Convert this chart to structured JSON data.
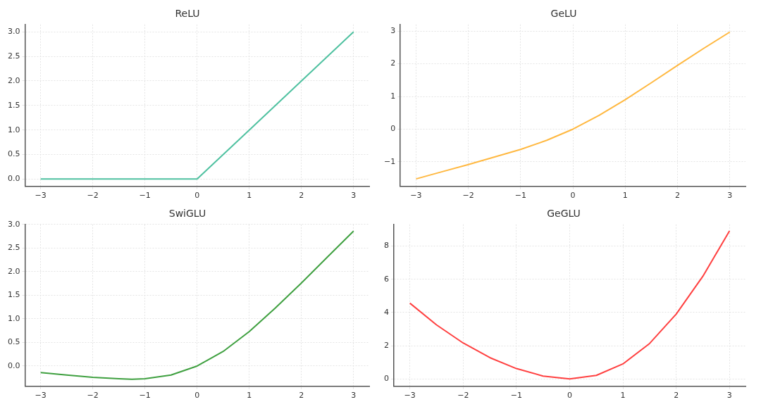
{
  "chart_data": [
    {
      "type": "line",
      "title": "ReLU",
      "x": [
        -3,
        -2,
        -1,
        0,
        1,
        2,
        3
      ],
      "series": [
        {
          "color": "#4fc1a0",
          "values": [
            0,
            0,
            0,
            0,
            1,
            2,
            3
          ]
        }
      ],
      "xlim": [
        -3.3,
        3.3
      ],
      "ylim": [
        -0.15,
        3.15
      ],
      "xticks": [
        -3,
        -2,
        -1,
        0,
        1,
        2,
        3
      ],
      "yticks": [
        {
          "value": 0,
          "label": "0.0"
        },
        0.5,
        {
          "value": 1,
          "label": "1.0"
        },
        1.5,
        {
          "value": 2,
          "label": "2.0"
        },
        2.5,
        {
          "value": 3,
          "label": "3.0"
        }
      ],
      "grid": true,
      "legend": false
    },
    {
      "type": "line",
      "title": "GeLU",
      "x": [
        -3,
        -2.5,
        -2,
        -1.5,
        -1,
        -0.5,
        0,
        0.5,
        1,
        1.5,
        2,
        2.5,
        3
      ],
      "series": [
        {
          "color": "#ffb840",
          "values": [
            -1.52,
            -1.3,
            -1.08,
            -0.85,
            -0.62,
            -0.34,
            0,
            0.42,
            0.9,
            1.42,
            1.95,
            2.47,
            2.97
          ]
        }
      ],
      "xlim": [
        -3.3,
        3.3
      ],
      "ylim": [
        -1.75,
        3.2
      ],
      "xticks": [
        -3,
        -2,
        -1,
        0,
        1,
        2,
        3
      ],
      "yticks": [
        -1,
        0,
        1,
        2,
        3
      ],
      "grid": true,
      "legend": false
    },
    {
      "type": "line",
      "title": "SwiGLU",
      "x": [
        -3,
        -2.5,
        -2,
        -1.5,
        -1.25,
        -1,
        -0.5,
        0,
        0.5,
        1,
        1.5,
        2,
        2.5,
        3
      ],
      "series": [
        {
          "color": "#3fa040",
          "values": [
            -0.14,
            -0.19,
            -0.24,
            -0.27,
            -0.28,
            -0.27,
            -0.19,
            0,
            0.31,
            0.73,
            1.23,
            1.76,
            2.31,
            2.86
          ]
        }
      ],
      "xlim": [
        -3.3,
        3.3
      ],
      "ylim": [
        -0.43,
        3.0
      ],
      "xticks": [
        -3,
        -2,
        -1,
        0,
        1,
        2,
        3
      ],
      "yticks": [
        {
          "value": 0,
          "label": "0.0"
        },
        0.5,
        {
          "value": 1,
          "label": "1.0"
        },
        1.5,
        {
          "value": 2,
          "label": "2.0"
        },
        2.5,
        {
          "value": 3,
          "label": "3.0"
        }
      ],
      "grid": true,
      "legend": false
    },
    {
      "type": "line",
      "title": "GeGLU",
      "x": [
        -3,
        -2.5,
        -2,
        -1.5,
        -1,
        -0.5,
        0,
        0.5,
        1,
        1.5,
        2,
        2.5,
        3
      ],
      "series": [
        {
          "color": "#ff4040",
          "values": [
            4.56,
            3.25,
            2.16,
            1.28,
            0.62,
            0.17,
            0,
            0.21,
            0.9,
            2.13,
            3.9,
            6.18,
            8.91
          ]
        }
      ],
      "xlim": [
        -3.3,
        3.3
      ],
      "ylim": [
        -0.45,
        9.3
      ],
      "xticks": [
        -3,
        -2,
        -1,
        0,
        1,
        2,
        3
      ],
      "yticks": [
        0,
        2,
        4,
        6,
        8
      ],
      "grid": true,
      "legend": false
    }
  ]
}
